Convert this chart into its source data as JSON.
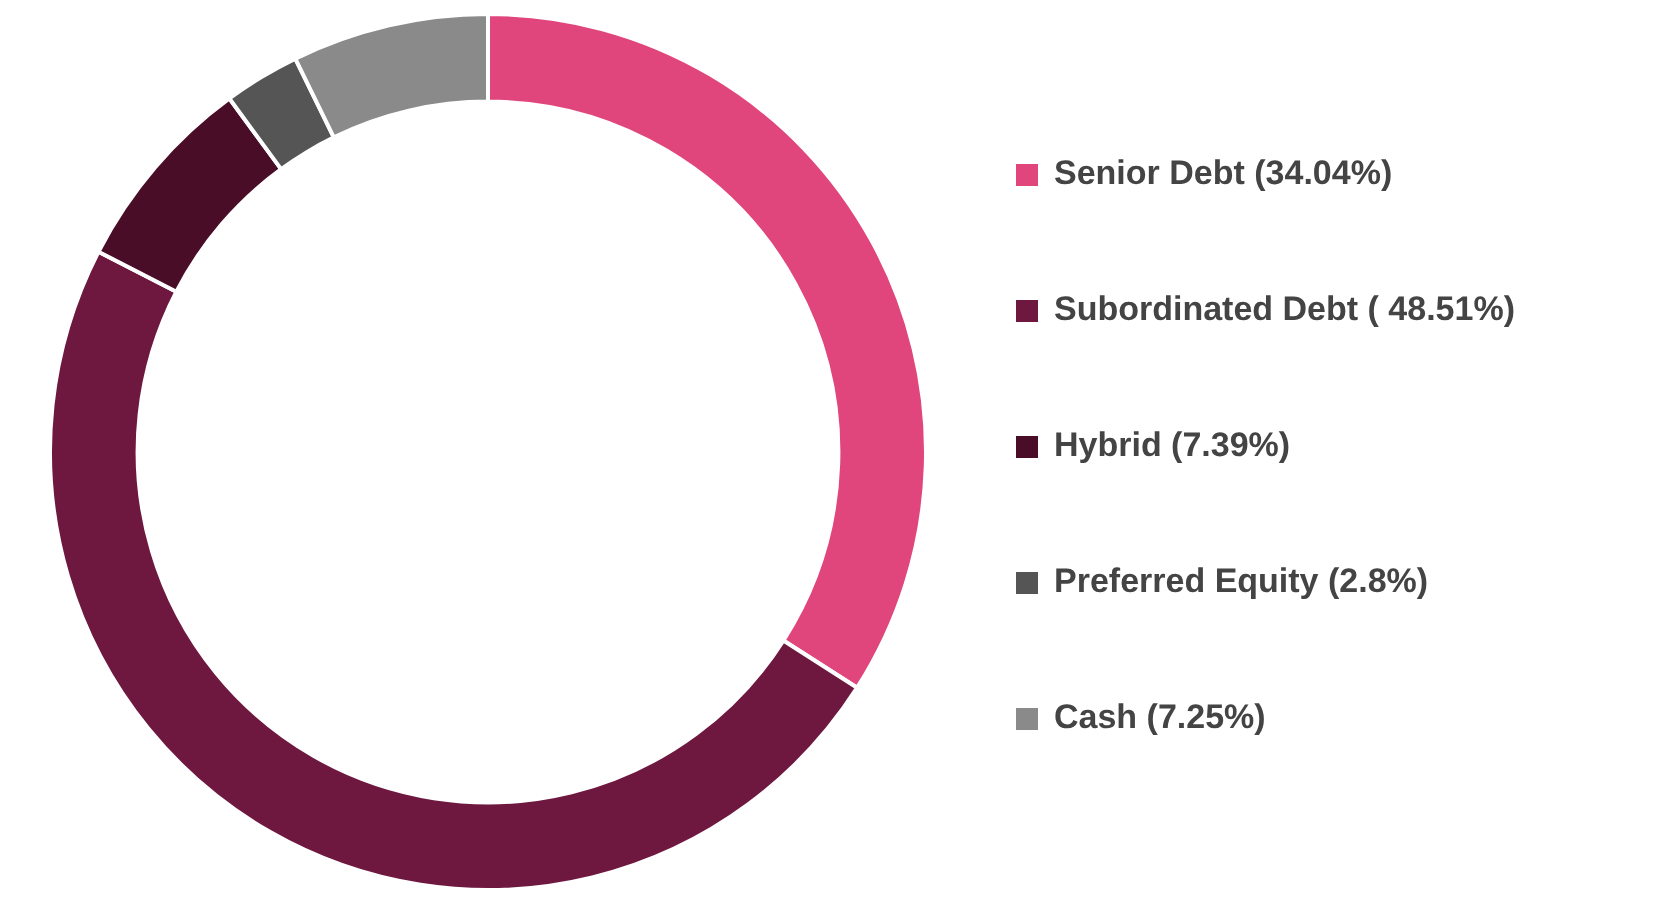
{
  "chart_data": {
    "type": "donut",
    "categories": [
      "Senior Debt (34.04%)",
      "Subordinated Debt ( 48.51%)",
      "Hybrid (7.39%)",
      "Preferred Equity (2.8%)",
      "Cash (7.25%)"
    ],
    "values": [
      34.04,
      48.51,
      7.39,
      2.8,
      7.25
    ],
    "colors": [
      "#e0457b",
      "#6e1840",
      "#4a0d28",
      "#555555",
      "#8a8a8a"
    ],
    "legend": "right"
  }
}
